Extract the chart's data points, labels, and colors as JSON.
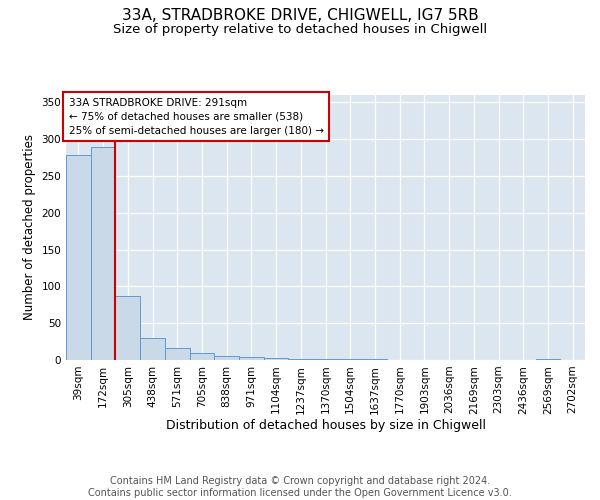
{
  "title1": "33A, STRADBROKE DRIVE, CHIGWELL, IG7 5RB",
  "title2": "Size of property relative to detached houses in Chigwell",
  "xlabel": "Distribution of detached houses by size in Chigwell",
  "ylabel": "Number of detached properties",
  "bin_labels": [
    "39sqm",
    "172sqm",
    "305sqm",
    "438sqm",
    "571sqm",
    "705sqm",
    "838sqm",
    "971sqm",
    "1104sqm",
    "1237sqm",
    "1370sqm",
    "1504sqm",
    "1637sqm",
    "1770sqm",
    "1903sqm",
    "2036sqm",
    "2169sqm",
    "2303sqm",
    "2436sqm",
    "2569sqm",
    "2702sqm"
  ],
  "bar_heights": [
    278,
    290,
    87,
    30,
    16,
    9,
    6,
    4,
    3,
    2,
    1,
    1,
    1,
    0,
    0,
    0,
    0,
    0,
    0,
    1,
    0
  ],
  "bar_color": "#c9d9e8",
  "bar_edge_color": "#5b9bd5",
  "vline_color": "#cc0000",
  "vline_x_idx": 2,
  "annotation_text": "33A STRADBROKE DRIVE: 291sqm\n← 75% of detached houses are smaller (538)\n25% of semi-detached houses are larger (180) →",
  "annotation_box_color": "#ffffff",
  "annotation_box_edge": "#cc0000",
  "ylim": [
    0,
    360
  ],
  "yticks": [
    0,
    50,
    100,
    150,
    200,
    250,
    300,
    350
  ],
  "footer_text": "Contains HM Land Registry data © Crown copyright and database right 2024.\nContains public sector information licensed under the Open Government Licence v3.0.",
  "plot_bg_color": "#dce6f0",
  "fig_bg_color": "#ffffff",
  "title1_fontsize": 11,
  "title2_fontsize": 9.5,
  "xlabel_fontsize": 9,
  "ylabel_fontsize": 8.5,
  "tick_fontsize": 7.5,
  "footer_fontsize": 7
}
